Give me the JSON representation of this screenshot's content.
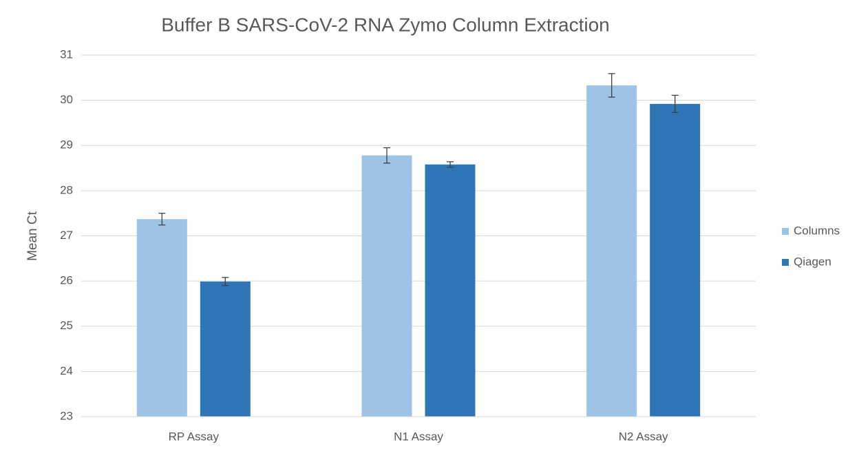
{
  "chart_data": {
    "type": "bar",
    "title": "Buffer B SARS-CoV-2 RNA Zymo Column Extraction",
    "y_label": "Mean Ct",
    "categories": [
      "RP Assay",
      "N1 Assay",
      "N2 Assay"
    ],
    "series": [
      {
        "name": "Columns",
        "color": "#9dc3e6",
        "values": [
          27.37,
          28.78,
          30.33
        ],
        "errors": [
          0.13,
          0.17,
          0.26
        ]
      },
      {
        "name": "Qiagen",
        "color": "#2e75b6",
        "values": [
          25.99,
          28.58,
          29.92
        ],
        "errors": [
          0.09,
          0.06,
          0.19
        ]
      }
    ],
    "ylim": [
      23,
      31
    ],
    "yticks": [
      23,
      24,
      25,
      26,
      27,
      28,
      29,
      30,
      31
    ],
    "grid": true,
    "legend": "right"
  }
}
